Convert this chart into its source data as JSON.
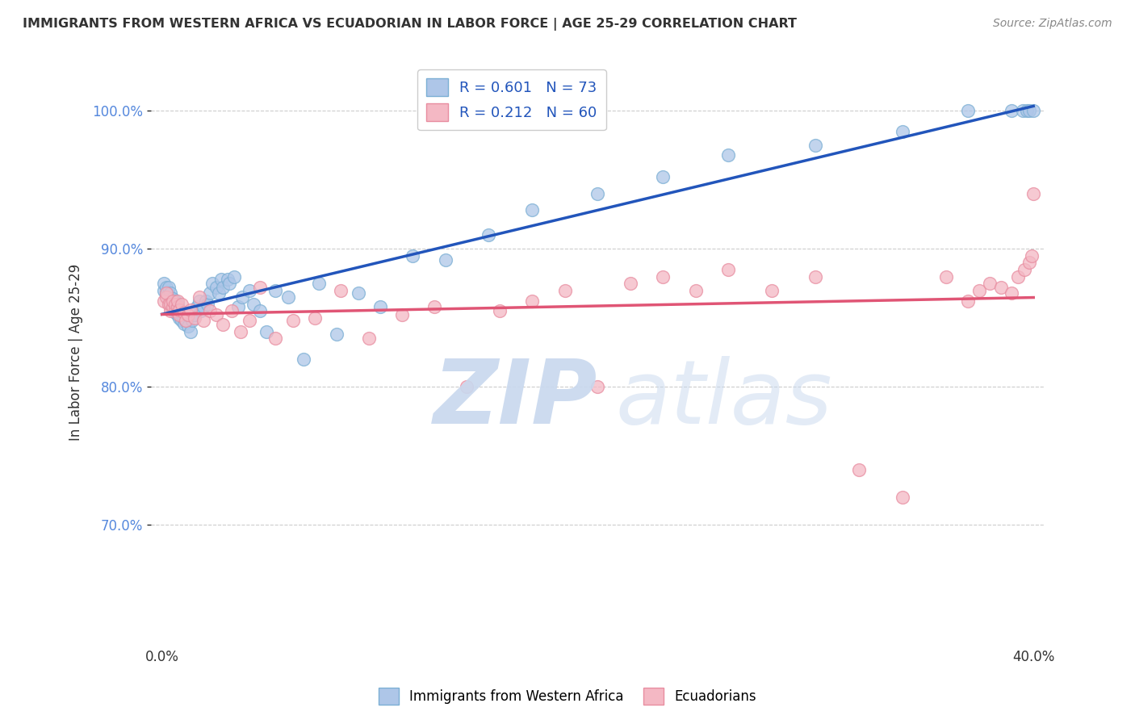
{
  "title": "IMMIGRANTS FROM WESTERN AFRICA VS ECUADORIAN IN LABOR FORCE | AGE 25-29 CORRELATION CHART",
  "source": "Source: ZipAtlas.com",
  "ylabel": "In Labor Force | Age 25-29",
  "xlim": [
    -0.005,
    0.405
  ],
  "ylim": [
    0.615,
    1.035
  ],
  "yticks": [
    0.7,
    0.8,
    0.9,
    1.0
  ],
  "ytick_labels": [
    "70.0%",
    "80.0%",
    "90.0%",
    "100.0%"
  ],
  "xtick_labels_left": "0.0%",
  "xtick_labels_right": "40.0%",
  "blue_R": 0.601,
  "blue_N": 73,
  "pink_R": 0.212,
  "pink_N": 60,
  "blue_scatter_color": "#AEC6E8",
  "pink_scatter_color": "#F4B8C4",
  "blue_edge_color": "#7BAFD4",
  "pink_edge_color": "#E88DA0",
  "blue_line_color": "#2255BB",
  "pink_line_color": "#E05575",
  "blue_label": "Immigrants from Western Africa",
  "pink_label": "Ecuadorians",
  "background_color": "#FFFFFF",
  "grid_color": "#CCCCCC",
  "title_color": "#333333",
  "yaxis_tick_color": "#5588DD",
  "blue_x": [
    0.001,
    0.001,
    0.002,
    0.002,
    0.003,
    0.003,
    0.003,
    0.004,
    0.004,
    0.004,
    0.005,
    0.005,
    0.005,
    0.006,
    0.006,
    0.006,
    0.007,
    0.007,
    0.007,
    0.008,
    0.008,
    0.009,
    0.009,
    0.01,
    0.01,
    0.011,
    0.012,
    0.013,
    0.014,
    0.015,
    0.016,
    0.017,
    0.018,
    0.019,
    0.02,
    0.021,
    0.022,
    0.023,
    0.025,
    0.026,
    0.027,
    0.028,
    0.03,
    0.031,
    0.033,
    0.035,
    0.037,
    0.04,
    0.042,
    0.045,
    0.048,
    0.052,
    0.058,
    0.065,
    0.072,
    0.08,
    0.09,
    0.1,
    0.115,
    0.13,
    0.15,
    0.17,
    0.2,
    0.23,
    0.26,
    0.3,
    0.34,
    0.37,
    0.39,
    0.395,
    0.397,
    0.398,
    0.4
  ],
  "blue_y": [
    0.87,
    0.875,
    0.868,
    0.872,
    0.863,
    0.867,
    0.872,
    0.86,
    0.864,
    0.868,
    0.856,
    0.86,
    0.864,
    0.854,
    0.858,
    0.862,
    0.852,
    0.856,
    0.86,
    0.85,
    0.854,
    0.848,
    0.852,
    0.846,
    0.85,
    0.848,
    0.844,
    0.84,
    0.848,
    0.852,
    0.858,
    0.862,
    0.855,
    0.858,
    0.862,
    0.86,
    0.868,
    0.875,
    0.872,
    0.868,
    0.878,
    0.872,
    0.878,
    0.875,
    0.88,
    0.858,
    0.865,
    0.87,
    0.86,
    0.855,
    0.84,
    0.87,
    0.865,
    0.82,
    0.875,
    0.838,
    0.868,
    0.858,
    0.895,
    0.892,
    0.91,
    0.928,
    0.94,
    0.952,
    0.968,
    0.975,
    0.985,
    1.0,
    1.0,
    1.0,
    1.0,
    1.0,
    1.0
  ],
  "pink_x": [
    0.001,
    0.002,
    0.002,
    0.003,
    0.004,
    0.004,
    0.005,
    0.005,
    0.006,
    0.006,
    0.007,
    0.007,
    0.008,
    0.008,
    0.009,
    0.01,
    0.011,
    0.012,
    0.013,
    0.015,
    0.017,
    0.019,
    0.022,
    0.025,
    0.028,
    0.032,
    0.036,
    0.04,
    0.045,
    0.052,
    0.06,
    0.07,
    0.082,
    0.095,
    0.11,
    0.125,
    0.14,
    0.155,
    0.17,
    0.185,
    0.2,
    0.215,
    0.23,
    0.245,
    0.26,
    0.28,
    0.3,
    0.32,
    0.34,
    0.36,
    0.37,
    0.375,
    0.38,
    0.385,
    0.39,
    0.393,
    0.396,
    0.398,
    0.399,
    0.4
  ],
  "pink_y": [
    0.862,
    0.865,
    0.868,
    0.86,
    0.855,
    0.86,
    0.858,
    0.862,
    0.856,
    0.86,
    0.858,
    0.862,
    0.852,
    0.856,
    0.86,
    0.854,
    0.848,
    0.852,
    0.856,
    0.85,
    0.865,
    0.848,
    0.855,
    0.852,
    0.845,
    0.855,
    0.84,
    0.848,
    0.872,
    0.835,
    0.848,
    0.85,
    0.87,
    0.835,
    0.852,
    0.858,
    0.8,
    0.855,
    0.862,
    0.87,
    0.8,
    0.875,
    0.88,
    0.87,
    0.885,
    0.87,
    0.88,
    0.74,
    0.72,
    0.88,
    0.862,
    0.87,
    0.875,
    0.872,
    0.868,
    0.88,
    0.885,
    0.89,
    0.895,
    0.94
  ]
}
